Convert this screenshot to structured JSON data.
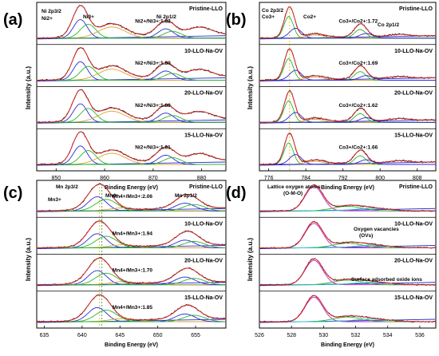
{
  "chart_data": [
    {
      "panel": "(a)",
      "type": "line",
      "ylabel": "Intensity (a.u.)",
      "xlabel": "Binding Energy (eV)",
      "x_ticks": [
        "850",
        "860",
        "870",
        "880"
      ],
      "xlim": [
        846,
        885
      ],
      "peaks": [
        855.0,
        861.5,
        872.5,
        879.0
      ],
      "annotations": [
        "Ni 2p3/2",
        "Ni3+",
        "Ni2+",
        "Ni 2p1/2"
      ],
      "series": [
        {
          "name": "Pristine-LLO",
          "ratio": "Ni2+/Ni3+:1.82"
        },
        {
          "name": "10-LLO-Na-OV",
          "ratio": "Ni2+/Ni3+:1.80"
        },
        {
          "name": "20-LLO-Na-OV",
          "ratio": "Ni2+/Ni3+:1.80"
        },
        {
          "name": "15-LLO-Na-OV",
          "ratio": "Ni2+/Ni3+:1.81"
        }
      ]
    },
    {
      "panel": "(b)",
      "type": "line",
      "ylabel": "Intensity (a.u.)",
      "xlabel": "Binding Energy (eV)",
      "x_ticks": [
        "776",
        "784",
        "792",
        "800",
        "808"
      ],
      "xlim": [
        774,
        812
      ],
      "peaks": [
        780.5,
        786.0,
        796.0
      ],
      "annotations": [
        "Co 2p3/2",
        "Co3+",
        "Co2+",
        "Co 2p1/2"
      ],
      "series": [
        {
          "name": "Pristine-LLO",
          "ratio": "Co3+/Co2+:1.72"
        },
        {
          "name": "10-LLO-Na-OV",
          "ratio": "Co3+/Co2+:1.69"
        },
        {
          "name": "20-LLO-Na-OV",
          "ratio": "Co3+/Co2+:1.62"
        },
        {
          "name": "15-LLO-Na-OV",
          "ratio": "Co3+/Co2+:1.66"
        }
      ]
    },
    {
      "panel": "(c)",
      "type": "line",
      "ylabel": "Intensity (a.u.)",
      "xlabel": "Binding Energy (eV)",
      "x_ticks": [
        "635",
        "640",
        "645",
        "650",
        "655"
      ],
      "xlim": [
        634,
        659
      ],
      "peaks": [
        642.3,
        654.0
      ],
      "annotations": [
        "Mn 2p3/2",
        "Mn3+",
        "Mn4+",
        "Mn 2p1/2"
      ],
      "series": [
        {
          "name": "Pristine-LLO",
          "ratio": "Mn4+/Mn3+:2.06"
        },
        {
          "name": "10-LLO-Na-OV",
          "ratio": "Mn4+/Mn3+:1.94"
        },
        {
          "name": "20-LLO-Na-OV",
          "ratio": "Mn4+/Mn3+:1.70"
        },
        {
          "name": "15-LLO-Na-OV",
          "ratio": "Mn4+/Mn3+:1.85"
        }
      ]
    },
    {
      "panel": "(d)",
      "type": "line",
      "ylabel": "Intensity (a.u.)",
      "xlabel": "Binding Energy (eV)",
      "x_ticks": [
        "526",
        "528",
        "530",
        "532",
        "534",
        "536"
      ],
      "xlim": [
        526,
        537
      ],
      "peaks": [
        529.4,
        531.5,
        532.8
      ],
      "annotations": [
        "Lattice oxygen atoms",
        "(O-M-O)",
        "Oxygen vacancies",
        "(OVs)",
        "Surface adsorbed oxide ions"
      ],
      "series": [
        {
          "name": "Pristine-LLO",
          "ratio": ""
        },
        {
          "name": "10-LLO-Na-OV",
          "ratio": ""
        },
        {
          "name": "20-LLO-Na-OV",
          "ratio": ""
        },
        {
          "name": "15-LLO-Na-OV",
          "ratio": ""
        }
      ]
    }
  ]
}
